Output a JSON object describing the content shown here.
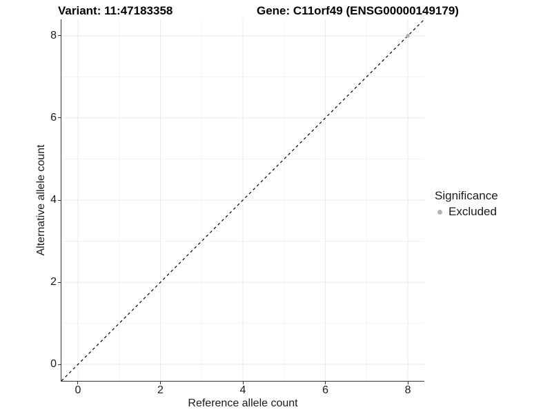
{
  "chart_data": {
    "type": "scatter",
    "title_left": "Variant: 11:47183358",
    "title_right": "Gene: C11orf49 (ENSG00000149179)",
    "xlabel": "Reference allele count",
    "ylabel": "Alternative allele count",
    "xlim": [
      -0.4,
      8.4
    ],
    "ylim": [
      -0.4,
      8.4
    ],
    "x_ticks": [
      0,
      2,
      4,
      6,
      8
    ],
    "y_ticks": [
      0,
      2,
      4,
      6,
      8
    ],
    "x_minor_ticks": [
      1,
      3,
      5,
      7
    ],
    "y_minor_ticks": [
      1,
      3,
      5,
      7
    ],
    "grid": true,
    "reference_line": {
      "type": "abline",
      "slope": 1,
      "intercept": 0,
      "style": "dashed",
      "color": "#000000"
    },
    "series": [
      {
        "name": "Excluded",
        "color": "#b3b3b3",
        "points": [
          {
            "x": 8,
            "y": 8
          }
        ]
      }
    ],
    "legend": {
      "title": "Significance",
      "position": "right",
      "items": [
        {
          "label": "Excluded",
          "color": "#b3b3b3"
        }
      ]
    },
    "colors": {
      "grid_major": "#e8e8e8",
      "grid_minor": "#f3f3f3",
      "axis_line": "#333333",
      "tick_label": "#1a1a1a"
    }
  }
}
